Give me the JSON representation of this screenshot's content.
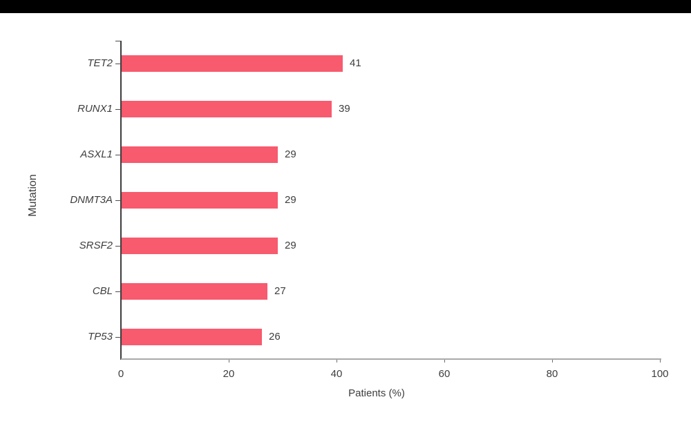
{
  "chart_data": {
    "type": "bar",
    "orientation": "horizontal",
    "title": "",
    "categories": [
      "TET2",
      "RUNX1",
      "ASXL1",
      "DNMT3A",
      "SRSF2",
      "CBL",
      "TP53"
    ],
    "values": [
      41,
      39,
      29,
      29,
      29,
      27,
      26
    ],
    "value_labels": [
      "41",
      "39",
      "29",
      "29",
      "29",
      "27",
      "26"
    ],
    "xlabel": "Patients (%)",
    "ylabel": "Mutation",
    "xlim": [
      0,
      100
    ],
    "x_ticks": [
      0,
      20,
      40,
      60,
      80,
      100
    ],
    "grid": false,
    "legend": "none",
    "value_labels_shown": true,
    "bar_color": "#F85A6E",
    "axis_color": "#3C3C3C",
    "x_axis_line_color": "#A9A9A9",
    "text_color": "#3D3D3D"
  }
}
